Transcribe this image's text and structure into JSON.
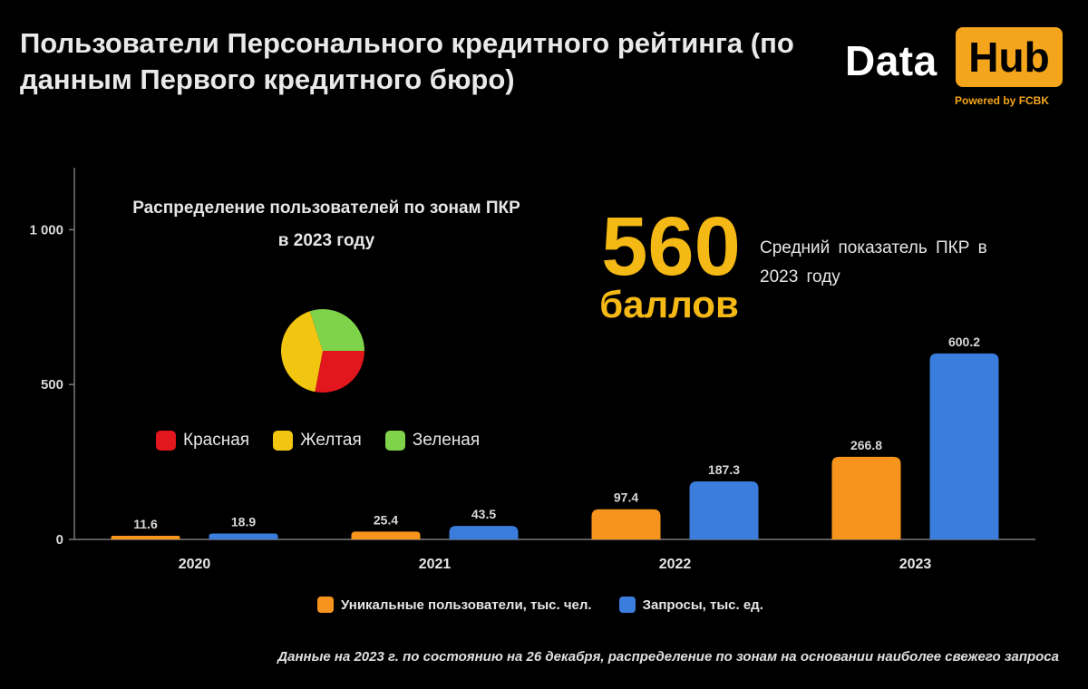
{
  "header": {
    "title": "Пользователи Персонального кредитного рейтинга (по данным Первого кредитного бюро)",
    "logo": {
      "part1": "Data",
      "part2": "Hub",
      "tagline": "Powered by FCBK"
    }
  },
  "pie": {
    "title_line1": "Распределение пользователей по зонам ПКР",
    "title_line2": "в 2023 году"
  },
  "highlight": {
    "value": "560",
    "unit": "баллов",
    "description": "Средний показатель ПКР в 2023 году"
  },
  "footnote": "Данные на 2023 г. по состоянию на 26 декабря, распределение по зонам на основании наиболее свежего запроса",
  "chart_data": [
    {
      "type": "bar",
      "categories": [
        "2020",
        "2021",
        "2022",
        "2023"
      ],
      "series": [
        {
          "name": "Уникальные пользователи, тыс. чел.",
          "values": [
            11.6,
            25.4,
            97.4,
            266.8
          ],
          "color": "#f7941d"
        },
        {
          "name": "Запросы, тыс. ед.",
          "values": [
            18.9,
            43.5,
            187.3,
            600.2
          ],
          "color": "#3b7ddd"
        }
      ],
      "ylim": [
        0,
        1200
      ],
      "yticks": [
        0,
        500,
        1000
      ],
      "ytick_labels": [
        "0",
        "500",
        "1 000"
      ],
      "legend": "bottom"
    },
    {
      "type": "pie",
      "labels": [
        "Красная",
        "Желтая",
        "Зеленая"
      ],
      "values": [
        28,
        42,
        30
      ],
      "colors": [
        "#e2171d",
        "#f2c511",
        "#7fd34a"
      ],
      "legend": "bottom"
    }
  ]
}
